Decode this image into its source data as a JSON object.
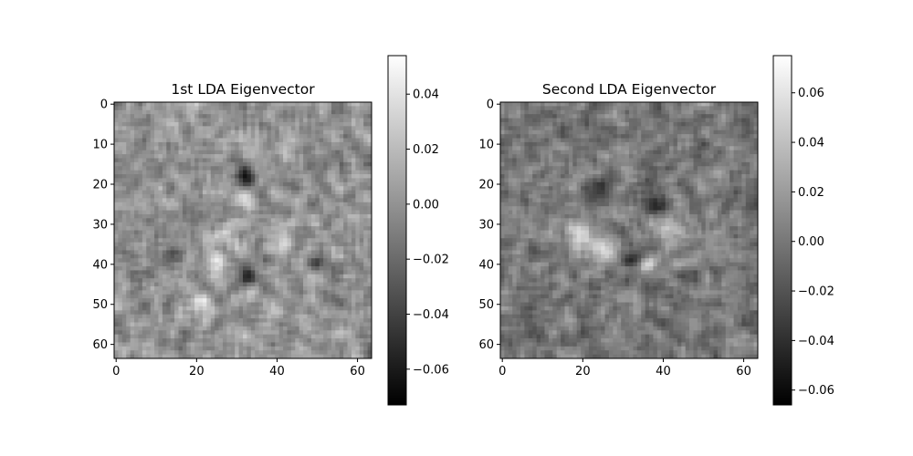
{
  "chart_data": [
    {
      "type": "heatmap",
      "title": "1st LDA Eigenvector",
      "xlabel": "",
      "ylabel": "",
      "colormap": "gray",
      "grid": false,
      "image_size": [
        64,
        64
      ],
      "xlim": [
        -0.5,
        63.5
      ],
      "ylim": [
        63.5,
        -0.5
      ],
      "x_ticks": [
        0,
        20,
        40,
        60
      ],
      "x_tick_labels": [
        "0",
        "20",
        "40",
        "60"
      ],
      "y_ticks": [
        0,
        10,
        20,
        30,
        40,
        50,
        60
      ],
      "y_tick_labels": [
        "0",
        "10",
        "20",
        "30",
        "40",
        "50",
        "60"
      ],
      "colorbar": {
        "range": [
          -0.073,
          0.054
        ],
        "ticks": [
          -0.06,
          -0.04,
          -0.02,
          0.0,
          0.02,
          0.04
        ],
        "tick_labels": [
          "−0.06",
          "−0.04",
          "−0.02",
          "0.00",
          "0.02",
          "0.04"
        ]
      },
      "features": [
        {
          "x": 32,
          "y": 18,
          "sigma": 1.6,
          "value": -0.06
        },
        {
          "x": 33,
          "y": 43,
          "sigma": 1.6,
          "value": -0.062
        },
        {
          "x": 14,
          "y": 37,
          "sigma": 1.5,
          "value": -0.04
        },
        {
          "x": 50,
          "y": 40,
          "sigma": 1.5,
          "value": -0.025
        },
        {
          "x": 20,
          "y": 50,
          "sigma": 2.5,
          "value": 0.035
        },
        {
          "x": 32,
          "y": 24,
          "sigma": 2.0,
          "value": 0.03
        },
        {
          "x": 25,
          "y": 40,
          "sigma": 2.0,
          "value": 0.03
        },
        {
          "x": 40,
          "y": 35,
          "sigma": 2.0,
          "value": 0.025
        },
        {
          "x": 28,
          "y": 33,
          "sigma": 2.5,
          "value": 0.02
        }
      ]
    },
    {
      "type": "heatmap",
      "title": "Second LDA Eigenvector",
      "xlabel": "",
      "ylabel": "",
      "colormap": "gray",
      "grid": false,
      "image_size": [
        64,
        64
      ],
      "xlim": [
        -0.5,
        63.5
      ],
      "ylim": [
        63.5,
        -0.5
      ],
      "x_ticks": [
        0,
        20,
        40,
        60
      ],
      "x_tick_labels": [
        "0",
        "20",
        "40",
        "60"
      ],
      "y_ticks": [
        0,
        10,
        20,
        30,
        40,
        50,
        60
      ],
      "y_tick_labels": [
        "0",
        "10",
        "20",
        "30",
        "40",
        "50",
        "60"
      ],
      "colorbar": {
        "range": [
          -0.066,
          0.075
        ],
        "ticks": [
          -0.06,
          -0.04,
          -0.02,
          0.0,
          0.02,
          0.04,
          0.06
        ],
        "tick_labels": [
          "−0.06",
          "−0.04",
          "−0.02",
          "0.00",
          "0.02",
          "0.04",
          "0.06"
        ]
      },
      "features": [
        {
          "x": 32,
          "y": 39,
          "sigma": 1.5,
          "value": -0.062
        },
        {
          "x": 25,
          "y": 22,
          "sigma": 2.5,
          "value": -0.03
        },
        {
          "x": 38,
          "y": 24,
          "sigma": 2.5,
          "value": -0.03
        },
        {
          "x": 20,
          "y": 33,
          "sigma": 3.0,
          "value": 0.05
        },
        {
          "x": 26,
          "y": 37,
          "sigma": 2.0,
          "value": 0.05
        },
        {
          "x": 42,
          "y": 31,
          "sigma": 3.0,
          "value": 0.04
        },
        {
          "x": 36,
          "y": 40,
          "sigma": 1.4,
          "value": 0.055
        }
      ]
    }
  ]
}
